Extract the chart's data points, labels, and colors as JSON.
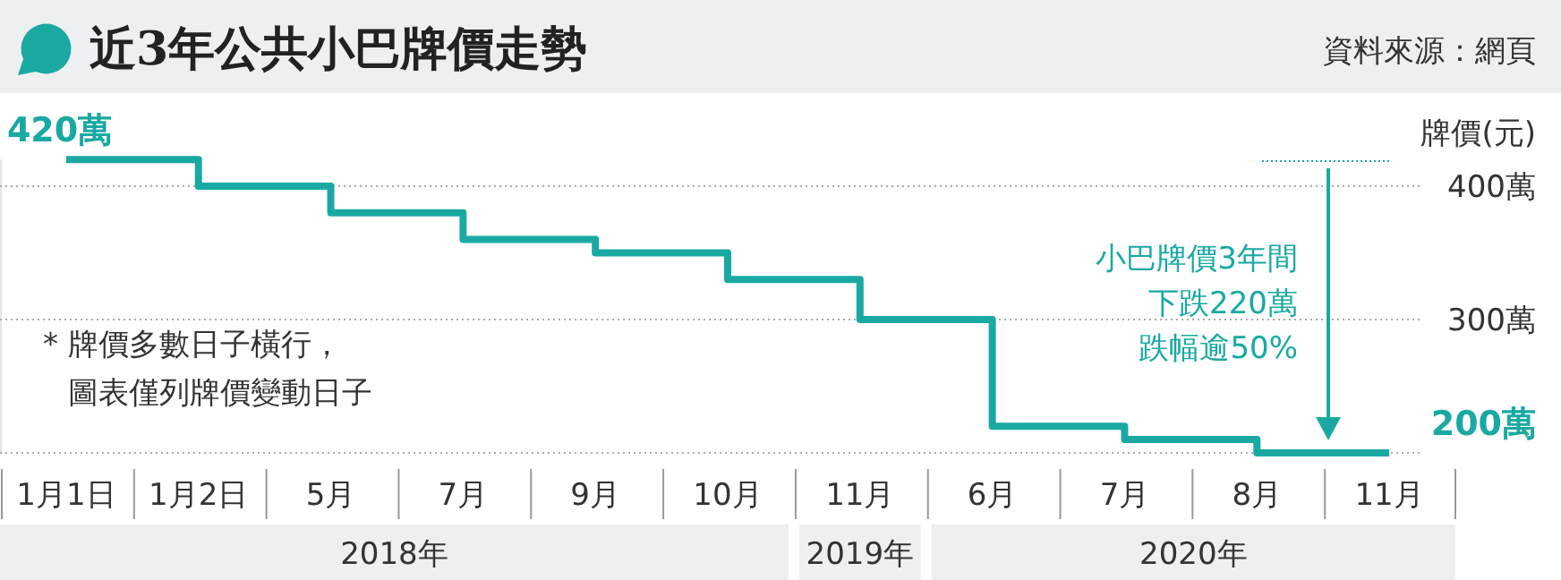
{
  "chart_data": {
    "type": "step",
    "title": "近3年公共小巴牌價走勢",
    "ylabel": "牌價(元)",
    "categories": [
      "1月1日",
      "1月2日",
      "5月",
      "7月",
      "9月",
      "10月",
      "11月",
      "6月",
      "7月",
      "8月",
      "11月"
    ],
    "series": [
      {
        "color": "#1aa9a2",
        "values": [
          420,
          400,
          380,
          360,
          350,
          330,
          300,
          220,
          210,
          200,
          200
        ],
        "value_labels": [
          "420萬",
          null,
          null,
          null,
          null,
          null,
          null,
          null,
          null,
          null,
          "200萬"
        ]
      }
    ],
    "ylim": [
      200,
      420
    ],
    "yticks": [
      {
        "value": 400,
        "label": "400萬"
      },
      {
        "value": 300,
        "label": "300萬"
      },
      {
        "value": 200,
        "label": null
      }
    ],
    "grid": "y",
    "annotations": [
      "* 牌價多數日子橫行，",
      "圖表僅列牌價變動日子",
      "小巴牌價3年間",
      "下跌220萬",
      "跌幅逾50%",
      "資料來源：網頁",
      "2018年",
      "2019年",
      "2020年"
    ]
  }
}
